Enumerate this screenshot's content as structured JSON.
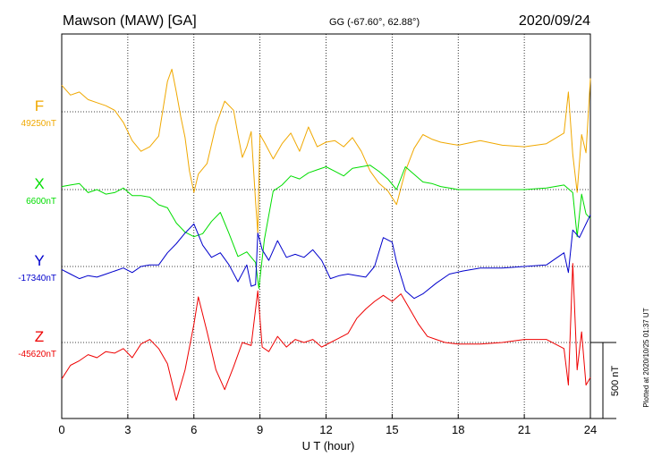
{
  "header": {
    "station": "Mawson (MAW)  [GA]",
    "coords": "GG (-67.60°,  62.88°)",
    "date": "2020/09/24"
  },
  "plotted_note": "Plotted at 2020/10/25 01:37 UT",
  "scale_label": "500 nT",
  "chart_data": {
    "type": "line",
    "xlabel": "U T (hour)",
    "xlim": [
      0,
      24
    ],
    "xticks": [
      "0",
      "3",
      "6",
      "9",
      "12",
      "15",
      "18",
      "21",
      "24"
    ],
    "units": "nT",
    "scale_bar_nT": 500,
    "series": [
      {
        "name": "F",
        "baseline_label": "49250nT",
        "baseline": 49250,
        "color": "#f0a800",
        "x": [
          0,
          0.4,
          0.8,
          1.2,
          1.6,
          2,
          2.4,
          2.8,
          3.2,
          3.6,
          4,
          4.4,
          4.8,
          5,
          5.2,
          5.4,
          5.6,
          5.8,
          6,
          6.2,
          6.6,
          7,
          7.4,
          7.8,
          8,
          8.2,
          8.4,
          8.6,
          8.8,
          8.9,
          9,
          9.2,
          9.6,
          10,
          10.4,
          10.8,
          11.2,
          11.6,
          12,
          12.4,
          12.8,
          13.2,
          13.6,
          14,
          14.4,
          14.8,
          15.2,
          15.6,
          16,
          16.4,
          16.8,
          17.2,
          17.6,
          18,
          19,
          20,
          21,
          22,
          22.8,
          23,
          23.2,
          23.4,
          23.6,
          23.8,
          24
        ],
        "values": [
          49425,
          49360,
          49380,
          49330,
          49310,
          49290,
          49260,
          49180,
          49060,
          48990,
          49020,
          49090,
          49450,
          49530,
          49380,
          49220,
          49080,
          48860,
          48720,
          48840,
          48910,
          49160,
          49320,
          49260,
          49100,
          48950,
          49020,
          49120,
          48660,
          48450,
          49100,
          49050,
          48940,
          49040,
          49110,
          48990,
          49150,
          49020,
          49050,
          49060,
          49020,
          49080,
          48990,
          48860,
          48780,
          48730,
          48640,
          48860,
          49010,
          49100,
          49070,
          49050,
          49040,
          49030,
          49060,
          49030,
          49020,
          49040,
          49110,
          49380,
          48970,
          48720,
          49100,
          48980,
          49470
        ]
      },
      {
        "name": "X",
        "baseline_label": "6600nT",
        "baseline": 6600,
        "color": "#00dd00",
        "x": [
          0,
          0.4,
          0.8,
          1.2,
          1.6,
          2,
          2.4,
          2.8,
          3.2,
          3.6,
          4,
          4.4,
          4.8,
          5.2,
          5.6,
          6,
          6.4,
          6.8,
          7.2,
          7.6,
          8,
          8.4,
          8.8,
          8.95,
          9.2,
          9.6,
          10,
          10.4,
          10.8,
          11.2,
          11.6,
          12,
          12.4,
          12.8,
          13.2,
          13.6,
          14,
          14.4,
          14.8,
          15.2,
          15.6,
          16,
          16.4,
          16.8,
          17.2,
          17.6,
          18,
          19,
          20,
          21,
          22,
          22.8,
          23.2,
          23.4,
          23.6,
          23.8,
          24
        ],
        "values": [
          6620,
          6630,
          6640,
          6580,
          6600,
          6570,
          6580,
          6610,
          6560,
          6560,
          6550,
          6500,
          6480,
          6380,
          6320,
          6290,
          6310,
          6390,
          6450,
          6310,
          6160,
          6190,
          6120,
          5950,
          6270,
          6590,
          6630,
          6690,
          6670,
          6710,
          6730,
          6750,
          6720,
          6690,
          6740,
          6750,
          6760,
          6720,
          6670,
          6600,
          6750,
          6700,
          6650,
          6640,
          6620,
          6610,
          6600,
          6600,
          6600,
          6600,
          6610,
          6630,
          6580,
          6290,
          6570,
          6440,
          6410
        ]
      },
      {
        "name": "Y",
        "baseline_label": "-17340nT",
        "baseline": -17340,
        "color": "#0000cc",
        "x": [
          0,
          0.4,
          0.8,
          1.2,
          1.6,
          2,
          2.4,
          2.8,
          3.2,
          3.6,
          4,
          4.4,
          4.8,
          5.2,
          5.6,
          6,
          6.4,
          6.8,
          7.2,
          7.6,
          8,
          8.4,
          8.6,
          8.8,
          8.9,
          9.1,
          9.4,
          9.8,
          10.2,
          10.6,
          11,
          11.4,
          11.8,
          12.2,
          12.6,
          13,
          13.4,
          13.8,
          14.2,
          14.6,
          15,
          15.2,
          15.6,
          16,
          16.4,
          17,
          17.6,
          18.2,
          19,
          20,
          21,
          22,
          22.8,
          23,
          23.2,
          23.5,
          23.8,
          24
        ],
        "values": [
          -17360,
          -17390,
          -17420,
          -17400,
          -17410,
          -17390,
          -17370,
          -17350,
          -17380,
          -17340,
          -17330,
          -17330,
          -17250,
          -17190,
          -17120,
          -17060,
          -17200,
          -17280,
          -17250,
          -17330,
          -17440,
          -17330,
          -17470,
          -17460,
          -17120,
          -17230,
          -17300,
          -17170,
          -17280,
          -17260,
          -17280,
          -17230,
          -17300,
          -17420,
          -17400,
          -17390,
          -17400,
          -17410,
          -17340,
          -17150,
          -17180,
          -17310,
          -17500,
          -17550,
          -17520,
          -17450,
          -17390,
          -17370,
          -17350,
          -17350,
          -17340,
          -17330,
          -17250,
          -17380,
          -17100,
          -17150,
          -17060,
          -17000
        ]
      },
      {
        "name": "Z",
        "baseline_label": "-45620nT",
        "baseline": -45620,
        "color": "#ee0000",
        "x": [
          0,
          0.4,
          0.8,
          1.2,
          1.6,
          2,
          2.4,
          2.8,
          3.2,
          3.6,
          4,
          4.4,
          4.8,
          5.2,
          5.6,
          6,
          6.2,
          6.6,
          7,
          7.4,
          7.8,
          8.2,
          8.6,
          8.9,
          9.1,
          9.4,
          9.8,
          10.2,
          10.6,
          11,
          11.4,
          11.8,
          12.2,
          12.6,
          13,
          13.4,
          13.8,
          14.2,
          14.6,
          15,
          15.4,
          15.8,
          16.2,
          16.6,
          17,
          17.4,
          18,
          19,
          20,
          21,
          22,
          22.8,
          23,
          23.2,
          23.4,
          23.6,
          23.8,
          24
        ],
        "values": [
          -45860,
          -45770,
          -45740,
          -45700,
          -45720,
          -45680,
          -45690,
          -45660,
          -45720,
          -45630,
          -45600,
          -45660,
          -45760,
          -46000,
          -45800,
          -45500,
          -45320,
          -45550,
          -45800,
          -45930,
          -45780,
          -45620,
          -45640,
          -45280,
          -45650,
          -45680,
          -45580,
          -45650,
          -45600,
          -45620,
          -45600,
          -45650,
          -45620,
          -45590,
          -45560,
          -45460,
          -45400,
          -45350,
          -45310,
          -45350,
          -45300,
          -45400,
          -45500,
          -45580,
          -45600,
          -45620,
          -45630,
          -45630,
          -45620,
          -45600,
          -45600,
          -45660,
          -45900,
          -45100,
          -45800,
          -45550,
          -45900,
          -45850
        ]
      }
    ]
  }
}
